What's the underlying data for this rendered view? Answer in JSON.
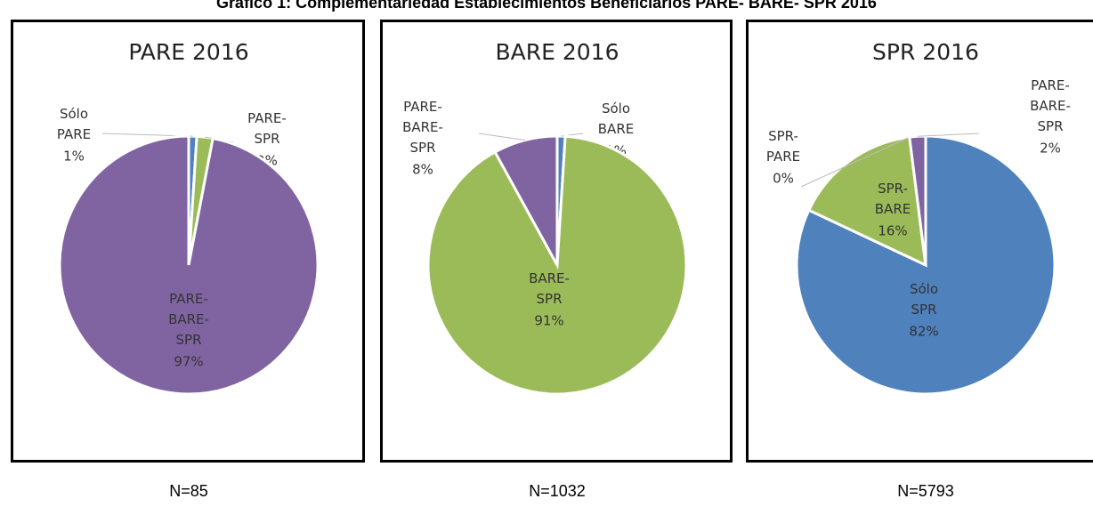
{
  "title": "Gráfico 1: Complementariedad Establecimientos Beneficiarios PARE- BARE- SPR 2016",
  "chart_data": [
    {
      "type": "pie",
      "title": "PARE 2016",
      "note": "N=85",
      "categories": [
        "Sólo PARE",
        "PARE-SPR",
        "PARE-BARE-SPR"
      ],
      "values": [
        1,
        2,
        97
      ],
      "value_labels": [
        "1%",
        "2%",
        "97%"
      ],
      "colors": [
        "#4f81bd",
        "#9bbb59",
        "#8064a2"
      ]
    },
    {
      "type": "pie",
      "title": "BARE 2016",
      "note": "N=1032",
      "categories": [
        "Sólo BARE",
        "BARE-SPR",
        "PARE-BARE-SPR"
      ],
      "values": [
        1,
        91,
        8
      ],
      "value_labels": [
        "1%",
        "91%",
        "8%"
      ],
      "colors": [
        "#4f81bd",
        "#9bbb59",
        "#8064a2"
      ]
    },
    {
      "type": "pie",
      "title": "SPR 2016",
      "note": "N=5793",
      "categories": [
        "Sólo SPR",
        "SPR-BARE",
        "SPR-PARE",
        "PARE-BARE-SPR"
      ],
      "values": [
        82,
        16,
        0,
        2
      ],
      "value_labels": [
        "82%",
        "16%",
        "0%",
        "2%"
      ],
      "colors": [
        "#4f81bd",
        "#9bbb59",
        "#c0504d",
        "#8064a2"
      ]
    }
  ]
}
